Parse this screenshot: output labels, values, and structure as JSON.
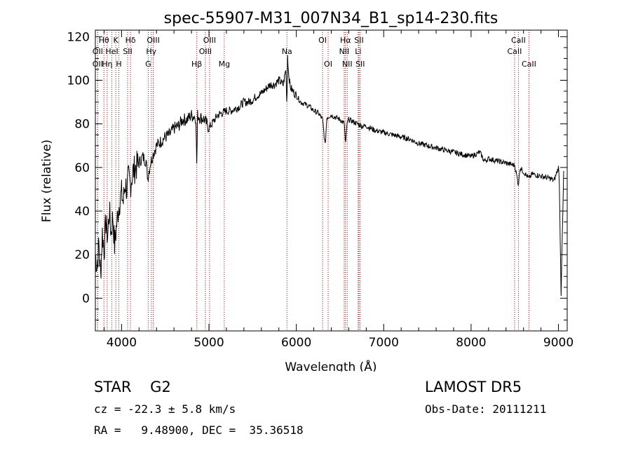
{
  "chart_data": {
    "type": "line",
    "title": "spec-55907-M31_007N34_B1_sp14-230.fits",
    "xlabel": "Wavelength (Å)",
    "ylabel": "Flux (relative)",
    "xlim": [
      3700,
      9100
    ],
    "ylim": [
      -15,
      123
    ],
    "xticks": [
      4000,
      5000,
      6000,
      7000,
      8000,
      9000
    ],
    "yticks": [
      0,
      20,
      40,
      60,
      80,
      100,
      120
    ],
    "grid": false,
    "series": [
      {
        "x": [
          3700,
          3720,
          3740,
          3760,
          3780,
          3800,
          3820,
          3840,
          3860,
          3880,
          3900,
          3920,
          3940,
          3960,
          3980,
          4000,
          4020,
          4040,
          4060,
          4080,
          4100,
          4130,
          4160,
          4200,
          4240,
          4280,
          4300,
          4330,
          4360,
          4400,
          4450,
          4500,
          4550,
          4600,
          4650,
          4700,
          4750,
          4800,
          4850,
          4861,
          4870,
          4900,
          4950,
          5000,
          5050,
          5100,
          5150,
          5200,
          5250,
          5300,
          5350,
          5400,
          5450,
          5500,
          5550,
          5600,
          5650,
          5700,
          5750,
          5800,
          5850,
          5880,
          5893,
          5900,
          5910,
          5930,
          5960,
          6000,
          6050,
          6100,
          6150,
          6200,
          6250,
          6300,
          6330,
          6350,
          6400,
          6450,
          6500,
          6550,
          6563,
          6580,
          6600,
          6650,
          6700,
          6750,
          6800,
          6900,
          7000,
          7100,
          7200,
          7300,
          7400,
          7500,
          7600,
          7700,
          7800,
          7900,
          8000,
          8100,
          8150,
          8200,
          8300,
          8400,
          8500,
          8542,
          8560,
          8600,
          8662,
          8700,
          8800,
          8900,
          8950,
          9000,
          9010,
          9030,
          9060
        ],
        "y": [
          20,
          15,
          25,
          10,
          30,
          22,
          35,
          28,
          40,
          30,
          38,
          24,
          32,
          40,
          45,
          48,
          44,
          53,
          50,
          55,
          52,
          58,
          60,
          62,
          65,
          63,
          55,
          62,
          66,
          70,
          72,
          74,
          75,
          78,
          79,
          82,
          82,
          84,
          83,
          60,
          84,
          83,
          82,
          78,
          81,
          84,
          85,
          86,
          86,
          87,
          88,
          90,
          90,
          91,
          93,
          94,
          96,
          98,
          98,
          100,
          98,
          105,
          88,
          112,
          104,
          97,
          95,
          93,
          90,
          89,
          88,
          86,
          85,
          82,
          70,
          83,
          84,
          83,
          82,
          80,
          70,
          80,
          82,
          81,
          80,
          79,
          79,
          77,
          76,
          75,
          74,
          73,
          71,
          70,
          69,
          68,
          67,
          66,
          65,
          67,
          63,
          64,
          63,
          62,
          61,
          52,
          60,
          58,
          55,
          57,
          56,
          55,
          54,
          60,
          53,
          2,
          58
        ]
      }
    ],
    "line_markers": [
      {
        "label": "Hθ",
        "x": 3798,
        "row": 0
      },
      {
        "label": "K",
        "x": 3934,
        "row": 0
      },
      {
        "label": "Hδ",
        "x": 4102,
        "row": 0
      },
      {
        "label": "OIII",
        "x": 4363,
        "row": 0
      },
      {
        "label": "OIII",
        "x": 5007,
        "row": 0
      },
      {
        "label": "OI",
        "x": 6300,
        "row": 0
      },
      {
        "label": "Hα",
        "x": 6563,
        "row": 0
      },
      {
        "label": "SII",
        "x": 6717,
        "row": 0
      },
      {
        "label": "CaII",
        "x": 8542,
        "row": 0
      },
      {
        "label": "OII",
        "x": 3727,
        "row": 1
      },
      {
        "label": "HeI",
        "x": 3889,
        "row": 1
      },
      {
        "label": "SII",
        "x": 4069,
        "row": 1
      },
      {
        "label": "Hγ",
        "x": 4340,
        "row": 1
      },
      {
        "label": "OIII",
        "x": 4959,
        "row": 1
      },
      {
        "label": "Na",
        "x": 5893,
        "row": 1
      },
      {
        "label": "NII",
        "x": 6548,
        "row": 1
      },
      {
        "label": "Li",
        "x": 6708,
        "row": 1
      },
      {
        "label": "CaII",
        "x": 8498,
        "row": 1
      },
      {
        "label": "OII",
        "x": 3727,
        "row": 2
      },
      {
        "label": "Hη",
        "x": 3835,
        "row": 2
      },
      {
        "label": "H",
        "x": 3969,
        "row": 2
      },
      {
        "label": "G",
        "x": 4305,
        "row": 2
      },
      {
        "label": "Hβ",
        "x": 4861,
        "row": 2
      },
      {
        "label": "Mg",
        "x": 5175,
        "row": 2
      },
      {
        "label": "OI",
        "x": 6364,
        "row": 2
      },
      {
        "label": "NII",
        "x": 6583,
        "row": 2
      },
      {
        "label": "SII",
        "x": 6731,
        "row": 2
      },
      {
        "label": "CaII",
        "x": 8662,
        "row": 2
      }
    ],
    "marker_color": "#b00000",
    "line_color": "#000000"
  },
  "info": {
    "class": "STAR    G2",
    "survey": "LAMOST DR5",
    "cz": "cz = -22.3 ± 5.8 km/s",
    "obs_date": "Obs-Date: 20111211",
    "radec": "RA =   9.48900, DEC =  35.36518"
  }
}
